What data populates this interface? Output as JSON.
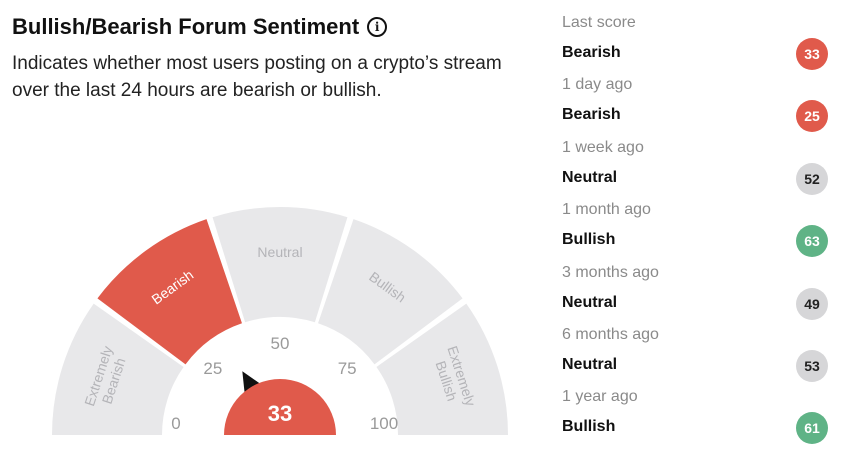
{
  "header": {
    "title": "Bullish/Bearish Forum Sentiment",
    "subtitle": "Indicates whether most users posting on a crypto’s stream over the last 24 hours are bearish or bullish."
  },
  "gauge": {
    "value": "33",
    "score": 33,
    "ticks": [
      "0",
      "25",
      "50",
      "75",
      "100"
    ],
    "segments": [
      {
        "label_lines": [
          "Extremely",
          "Bearish"
        ],
        "active": false
      },
      {
        "label_lines": [
          "Bearish"
        ],
        "active": true
      },
      {
        "label_lines": [
          "Neutral"
        ],
        "active": false
      },
      {
        "label_lines": [
          "Bullish"
        ],
        "active": false
      },
      {
        "label_lines": [
          "Extremely",
          "Bullish"
        ],
        "active": false
      }
    ],
    "colors": {
      "active": "#e05a4b",
      "inactive": "#e8e8ea",
      "inactive_text": "#b4b4b8",
      "active_text": "#ffffff",
      "tick_text": "#9a9a9a"
    }
  },
  "history": [
    {
      "period": "Last score",
      "label": "Bearish",
      "value": "33",
      "color": "#e05a4b",
      "text_color": "#ffffff"
    },
    {
      "period": "1 day ago",
      "label": "Bearish",
      "value": "25",
      "color": "#e05a4b",
      "text_color": "#ffffff"
    },
    {
      "period": "1 week ago",
      "label": "Neutral",
      "value": "52",
      "color": "#d6d6d8",
      "text_color": "#222222"
    },
    {
      "period": "1 month ago",
      "label": "Bullish",
      "value": "63",
      "color": "#5fb386",
      "text_color": "#ffffff"
    },
    {
      "period": "3 months ago",
      "label": "Neutral",
      "value": "49",
      "color": "#d6d6d8",
      "text_color": "#222222"
    },
    {
      "period": "6 months ago",
      "label": "Neutral",
      "value": "53",
      "color": "#d6d6d8",
      "text_color": "#222222"
    },
    {
      "period": "1 year ago",
      "label": "Bullish",
      "value": "61",
      "color": "#5fb386",
      "text_color": "#ffffff"
    }
  ]
}
